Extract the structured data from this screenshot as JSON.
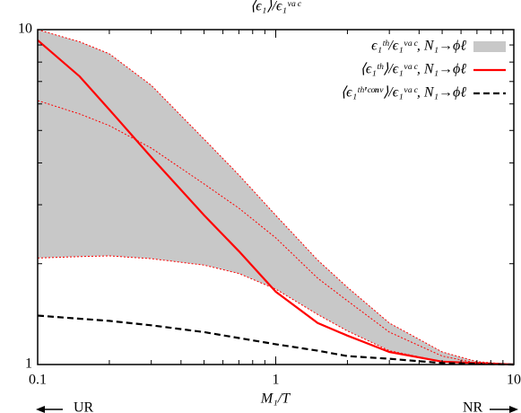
{
  "chart_data": {
    "type": "line",
    "title": "⟨ϵ₁⟩/ϵ₁ᵛᵃᶜ",
    "xlabel": "M₁/T",
    "log_x": true,
    "log_y": true,
    "xlim": [
      0.1,
      10
    ],
    "ylim": [
      1,
      10
    ],
    "xticks": [
      0.1,
      1,
      10
    ],
    "yticks": [
      1,
      10
    ],
    "xminor": [
      0.2,
      0.3,
      0.4,
      0.5,
      0.6,
      0.7,
      0.8,
      0.9,
      2,
      3,
      4,
      5,
      6,
      7,
      8,
      9
    ],
    "yminor": [
      2,
      3,
      4,
      5,
      6,
      7,
      8,
      9
    ],
    "x": [
      0.1,
      0.15,
      0.2,
      0.3,
      0.5,
      0.7,
      1,
      1.5,
      2,
      3,
      5,
      7,
      10
    ],
    "legend": "upper right",
    "series": [
      {
        "name": "ϵ₁ᵗʰ/ϵ₁ᵛᵃᶜ, N₁→ϕℓ",
        "style": "band",
        "color": "#c8c8c8",
        "edge_color": "#ff0000",
        "upper": [
          10,
          9.2,
          8.47,
          6.82,
          4.71,
          3.68,
          2.79,
          2.05,
          1.7,
          1.33,
          1.09,
          1.02,
          1.0
        ],
        "lower": [
          2.08,
          2.1,
          2.11,
          2.07,
          1.98,
          1.87,
          1.68,
          1.41,
          1.26,
          1.1,
          1.02,
          1.005,
          1.0
        ]
      },
      {
        "name": "⟨ϵ₁ᵗʰ⟩/ϵ₁ᵛᵃᶜ, N₁→ϕℓ",
        "style": "solid",
        "color": "#ff0000",
        "values": [
          9.3,
          7.25,
          5.77,
          4.16,
          2.79,
          2.18,
          1.65,
          1.33,
          1.22,
          1.09,
          1.02,
          1.01,
          1.0
        ]
      },
      {
        "name": "⟨ϵ₁ᵗʰ'ᶜᵒⁿᵛ⟩/ϵ₁ᵛᵃᶜ, N₁→ϕℓ",
        "style": "dashed",
        "color": "#000000",
        "values": [
          1.4,
          1.37,
          1.35,
          1.31,
          1.25,
          1.2,
          1.15,
          1.1,
          1.06,
          1.04,
          1.01,
          1.005,
          1.0
        ]
      },
      {
        "style": "dotted",
        "color": "#ff0000",
        "values": [
          6.14,
          5.6,
          5.17,
          4.43,
          3.46,
          2.93,
          2.39,
          1.81,
          1.55,
          1.25,
          1.06,
          1.01,
          1.0
        ]
      }
    ],
    "annotations": [
      "UR",
      "NR"
    ]
  }
}
